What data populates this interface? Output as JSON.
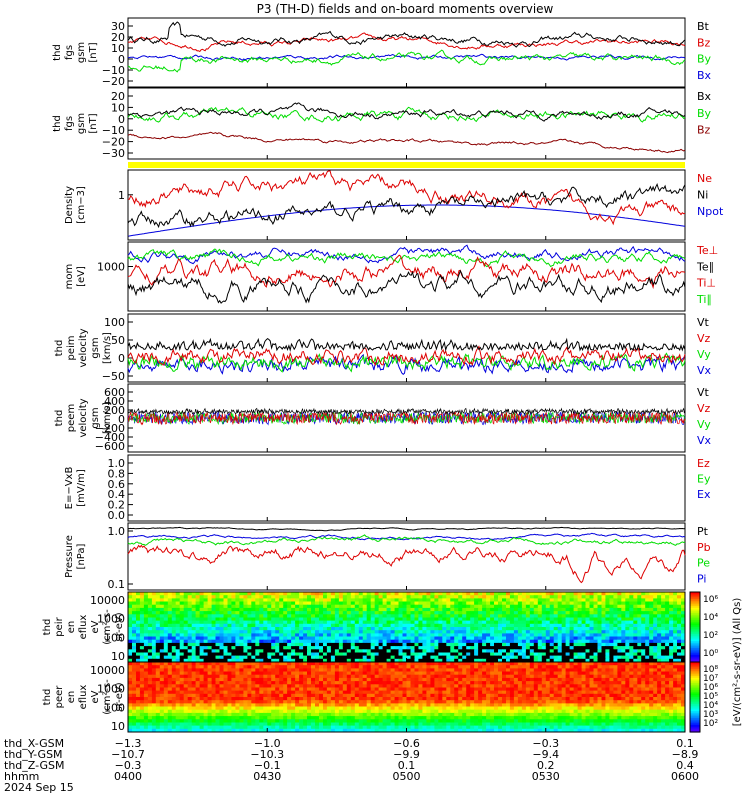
{
  "title": "P3 (TH-D) fields and on-board moments overview",
  "colors": {
    "black": "#000000",
    "red": "#dd0000",
    "green": "#00dd00",
    "blue": "#0000dd",
    "darkred": "#8b0000",
    "yellow": "#ffff00"
  },
  "chart_data": [
    {
      "type": "line",
      "id": "fgs1",
      "ylabel": [
        "thd",
        "fgs",
        "gsm",
        "[nT]"
      ],
      "ylim": [
        -30,
        35
      ],
      "yticks": [
        "30",
        "20",
        "10",
        "0",
        "−10",
        "−20"
      ],
      "legend": [
        "Bt",
        "Bz",
        "By",
        "Bx"
      ]
    },
    {
      "type": "line",
      "id": "fgs2",
      "ylabel": [
        "thd",
        "fgs",
        "gsm",
        "[nT]"
      ],
      "ylim": [
        -38,
        30
      ],
      "yticks": [
        "20",
        "10",
        "0",
        "−10",
        "−20",
        "−30"
      ],
      "legend": [
        "Bx",
        "By",
        "Bz"
      ]
    },
    {
      "type": "line",
      "id": "density",
      "ylabel": [
        "Density",
        "[cm−3]"
      ],
      "scale": "log",
      "yticks": [
        "1"
      ],
      "legend": [
        "Ne",
        "Ni",
        "Npot"
      ]
    },
    {
      "type": "line",
      "id": "temp",
      "ylabel": [
        "mom",
        "[eV]"
      ],
      "scale": "log",
      "yticks": [
        "1000"
      ],
      "legend": [
        "Te⊥",
        "Te∥",
        "Ti⊥",
        "Ti∥"
      ]
    },
    {
      "type": "line",
      "id": "peim",
      "ylabel": [
        "thd",
        "peim",
        "velocity",
        "gsm",
        "[km/s]"
      ],
      "ylim": [
        -40,
        120
      ],
      "yticks": [
        "100",
        "50",
        "0",
        "−50"
      ],
      "legend": [
        "Vt",
        "Vz",
        "Vy",
        "Vx"
      ]
    },
    {
      "type": "line",
      "id": "peem",
      "ylabel": [
        "thd",
        "peem",
        "velocity",
        "gsm",
        "[km/s]"
      ],
      "ylim": [
        -650,
        650
      ],
      "yticks": [
        "600",
        "400",
        "200",
        "0",
        "−200",
        "−400",
        "−600"
      ],
      "legend": [
        "Vt",
        "Vz",
        "Vy",
        "Vx"
      ]
    },
    {
      "type": "line",
      "id": "efield",
      "ylabel": [
        "E=−VxB",
        "[mV/m]"
      ],
      "ylim": [
        0,
        1
      ],
      "yticks": [
        "1.0",
        "0.8",
        "0.6",
        "0.4",
        "0.2",
        "0.0"
      ],
      "legend": [
        "Ez",
        "Ey",
        "Ex"
      ]
    },
    {
      "type": "line",
      "id": "pressure",
      "ylabel": [
        "Pressure",
        "[nPa]"
      ],
      "scale": "log",
      "yticks": [
        "1.0",
        "0.1"
      ],
      "legend": [
        "Pt",
        "Pb",
        "Pe",
        "Pi"
      ]
    },
    {
      "type": "heatmap",
      "id": "peir",
      "ylabel": [
        "thd",
        "peir",
        "en",
        "eflux",
        "eV",
        "(cm²-s-",
        "sr-eV)"
      ],
      "scale": "log",
      "yticks": [
        "10000",
        "1000",
        "100",
        "10"
      ]
    },
    {
      "type": "heatmap",
      "id": "peer",
      "ylabel": [
        "thd",
        "peer",
        "en",
        "eflux",
        "eV",
        "(cm²-s-",
        "sr-eV)"
      ],
      "scale": "log",
      "yticks": [
        "10000",
        "1000",
        "100",
        "10"
      ]
    }
  ],
  "colorbar": {
    "ticks": [
      "10⁶",
      "10⁴",
      "10²",
      "10⁰"
    ],
    "ticks2": [
      "10⁸",
      "10⁷",
      "10⁶",
      "10⁵",
      "10⁴",
      "10³",
      "10²"
    ],
    "label": "[eV/(cm²-s-sr-eV)] (All Qs)"
  },
  "xaxis": {
    "rows": [
      {
        "label": "thd_X-GSM",
        "values": [
          "−1.3",
          "−1.0",
          "−0.6",
          "−0.3",
          "0.1"
        ]
      },
      {
        "label": "thd_Y-GSM",
        "values": [
          "−10.7",
          "−10.3",
          "−9.9",
          "−9.4",
          "−8.9"
        ]
      },
      {
        "label": "thd_Z-GSM",
        "values": [
          "−0.3",
          "−0.1",
          "0.1",
          "0.2",
          "0.4"
        ]
      },
      {
        "label": "hhmm",
        "values": [
          "0400",
          "0430",
          "0500",
          "0530",
          "0600"
        ]
      }
    ],
    "date": "2024 Sep 15",
    "hours": [
      4,
      4.5,
      5,
      5.5,
      6
    ]
  }
}
